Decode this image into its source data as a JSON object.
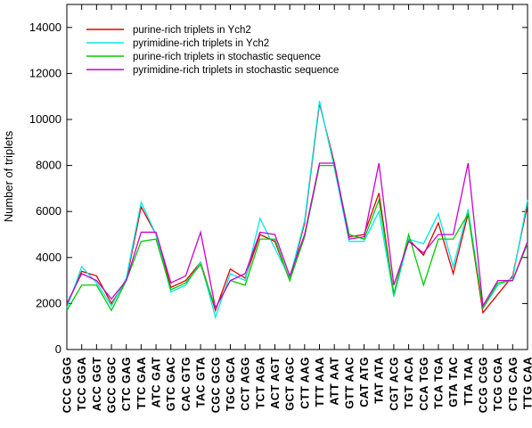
{
  "chart_data": {
    "type": "line",
    "ylabel": "Number of triplets",
    "ylim": [
      0,
      15000
    ],
    "yticks": [
      0,
      2000,
      4000,
      6000,
      8000,
      10000,
      12000,
      14000
    ],
    "grid": false,
    "legend_position": "top-left",
    "categories": [
      "CCC GGG",
      "TCC GGA",
      "ACC GGT",
      "GCC GGC",
      "CTC GAG",
      "TTC GAA",
      "ATC GAT",
      "GTC GAC",
      "CAC GTG",
      "TAC GTA",
      "CGC GCG",
      "TGC GCA",
      "CCT AGG",
      "TCT AGA",
      "ACT AGT",
      "GCT AGC",
      "CTT AAG",
      "TTT AAA",
      "ATT AAT",
      "GTT AAC",
      "CAT ATG",
      "TAT ATA",
      "CGT ACG",
      "TGT ACA",
      "CCA TGG",
      "TCA TGA",
      "GTA TAC",
      "TTA TAA",
      "CCG CGG",
      "TCG CGA",
      "CTG CAG",
      "TTG CAA"
    ],
    "series": [
      {
        "name": "purine-rich triplets in Ych2",
        "color": "#e00000",
        "values": [
          1900,
          3400,
          3200,
          2000,
          3000,
          6200,
          5000,
          2700,
          3000,
          3800,
          1700,
          3500,
          3100,
          5000,
          4700,
          3000,
          5500,
          10700,
          8100,
          4900,
          5000,
          6800,
          2400,
          4800,
          4100,
          5500,
          3300,
          5900,
          1600,
          2400,
          3200,
          6300
        ]
      },
      {
        "name": "pyrimidine-rich triplets in Ych2",
        "color": "#00e8e8",
        "values": [
          1800,
          3600,
          2900,
          1900,
          3100,
          6400,
          5000,
          2500,
          2800,
          3800,
          1400,
          3300,
          3000,
          5700,
          4400,
          3100,
          5600,
          10800,
          7900,
          4700,
          4700,
          6000,
          2300,
          4800,
          4600,
          5900,
          3600,
          6100,
          1800,
          2800,
          3100,
          6500
        ]
      },
      {
        "name": "purine-rich triplets in stochastic sequence",
        "color": "#00cc00",
        "values": [
          1700,
          2800,
          2800,
          1700,
          3000,
          4700,
          4800,
          2600,
          2900,
          3700,
          1800,
          3000,
          2800,
          4800,
          4800,
          3000,
          4900,
          8000,
          8000,
          5000,
          4800,
          6500,
          2400,
          5000,
          2800,
          4800,
          4800,
          5900,
          1800,
          2900,
          3000,
          4600
        ]
      },
      {
        "name": "pyrimidine-rich triplets in stochastic sequence",
        "color": "#cc00cc",
        "values": [
          2000,
          3300,
          3000,
          2200,
          3000,
          5100,
          5100,
          2900,
          3200,
          5100,
          1800,
          3000,
          3300,
          5100,
          5000,
          3200,
          5000,
          8100,
          8100,
          4800,
          4900,
          8100,
          2800,
          4700,
          4200,
          5000,
          5000,
          8100,
          1900,
          3000,
          3000,
          4700
        ]
      }
    ]
  }
}
